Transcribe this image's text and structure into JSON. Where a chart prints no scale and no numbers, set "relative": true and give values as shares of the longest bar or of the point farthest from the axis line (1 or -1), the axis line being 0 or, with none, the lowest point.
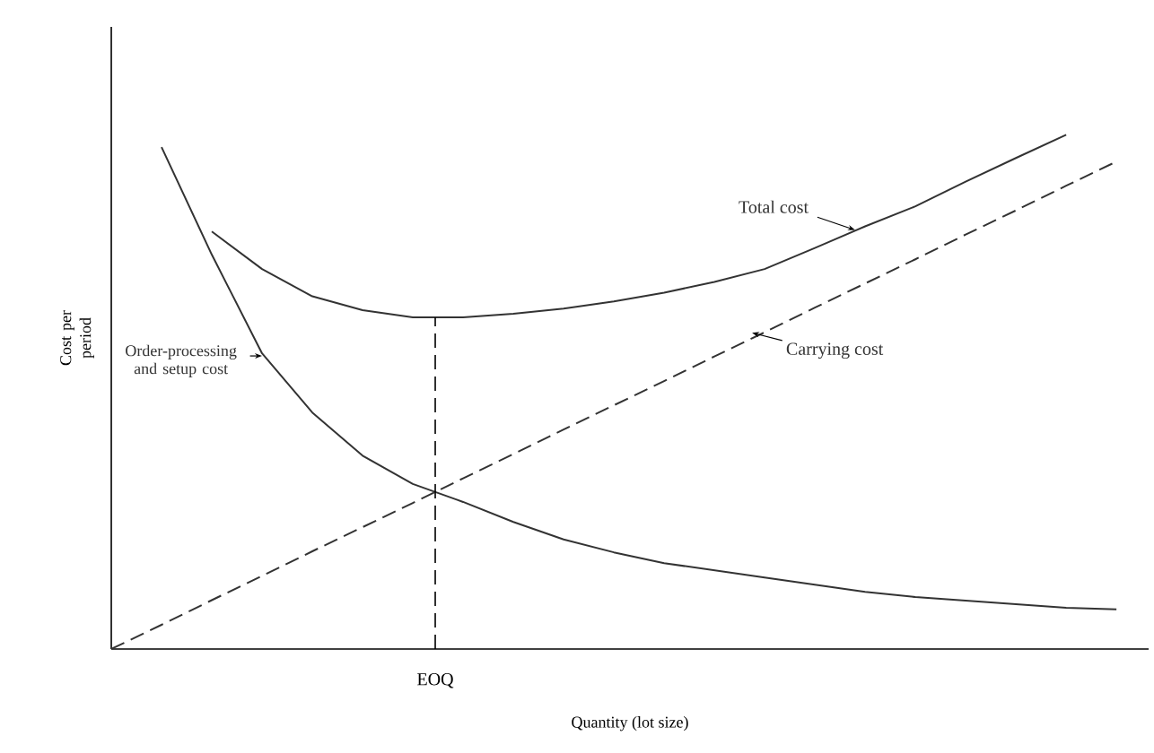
{
  "chart_data": {
    "type": "line",
    "relative": true,
    "xlabel": "Quantity (lot size)",
    "ylabel": "Cost per period",
    "categories": [
      null,
      null,
      null,
      null,
      null,
      null,
      null,
      null,
      null,
      null,
      null,
      null,
      null,
      null,
      null,
      null,
      null,
      null,
      null,
      null,
      null
    ],
    "series": [
      {
        "name": "Order-processing and setup cost",
        "color": "#333333",
        "line_style": "solid",
        "values": [
          null,
          0.976,
          0.767,
          0.575,
          0.46,
          0.376,
          0.321,
          0.286,
          0.247,
          0.213,
          0.188,
          0.167,
          0.153,
          0.139,
          0.125,
          0.111,
          0.101,
          0.094,
          0.087,
          0.08,
          0.077
        ]
      },
      {
        "name": "Total cost",
        "color": "#333333",
        "line_style": "solid",
        "values": [
          null,
          null,
          0.812,
          0.739,
          0.686,
          0.659,
          0.645,
          0.645,
          0.652,
          0.662,
          0.676,
          0.693,
          0.714,
          0.739,
          0.78,
          0.822,
          0.861,
          0.909,
          0.955,
          1.0,
          null
        ]
      },
      {
        "name": "Carrying cost",
        "color": "#333333",
        "line_style": "dashed",
        "values": [
          0,
          0.047,
          0.095,
          0.142,
          0.19,
          0.237,
          0.284,
          0.332,
          0.379,
          0.427,
          0.474,
          0.521,
          0.569,
          0.616,
          0.664,
          0.711,
          0.758,
          0.806,
          0.853,
          0.901,
          0.948
        ]
      }
    ],
    "annotations": [
      "EOQ"
    ]
  }
}
